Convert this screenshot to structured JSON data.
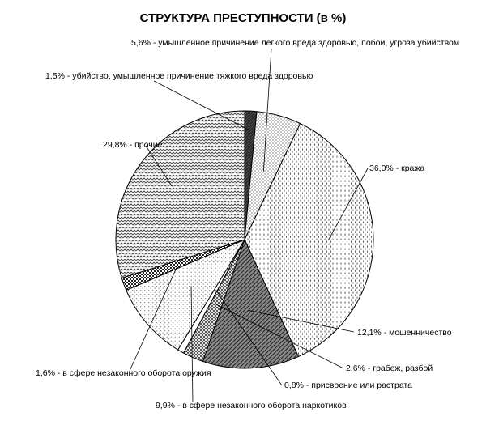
{
  "chart_data": {
    "type": "pie",
    "title": "СТРУКТУРА ПРЕСТУПНОСТИ  (в %)",
    "unit": "%",
    "start_angle_deg": 0,
    "direction": "clockwise",
    "slices": [
      {
        "key": "ubiystvo",
        "label": "1,5% - убийство, умышленное причинение тяжкого вреда здоровью",
        "value": 1.5,
        "pattern": "pat-solid",
        "color": "#2b2b2b"
      },
      {
        "key": "legkiy",
        "label": "5,6% - умышленное причинение легкого вреда здоровью, побои, угроза убийством",
        "value": 5.6,
        "pattern": "pat-dots",
        "color": "#000000"
      },
      {
        "key": "krazha",
        "label": "36,0% - кража",
        "value": 36.0,
        "pattern": "pat-dash",
        "color": "#000000"
      },
      {
        "key": "moshen",
        "label": "12,1% - мошенничество",
        "value": 12.1,
        "pattern": "pat-diag",
        "color": "#000000"
      },
      {
        "key": "grabezh",
        "label": "2,6% - грабеж, разбой",
        "value": 2.6,
        "pattern": "pat-hatch",
        "color": "#000000"
      },
      {
        "key": "prisv",
        "label": "0,8% - присвоение или растрата",
        "value": 0.8,
        "pattern": "pat-white",
        "color": "#000000"
      },
      {
        "key": "narkotiki",
        "label": "9,9% - в сфере незаконного оборота наркотиков",
        "value": 9.9,
        "pattern": "pat-gray",
        "color": "#7a7a7a"
      },
      {
        "key": "oruzhie",
        "label": "1,6% - в сфере незаконного оборота оружия",
        "value": 1.6,
        "pattern": "pat-checker",
        "color": "#000000"
      },
      {
        "key": "prochie",
        "label": "29,8% - прочие",
        "value": 29.8,
        "pattern": "pat-zigzag",
        "color": "#000000"
      }
    ]
  }
}
